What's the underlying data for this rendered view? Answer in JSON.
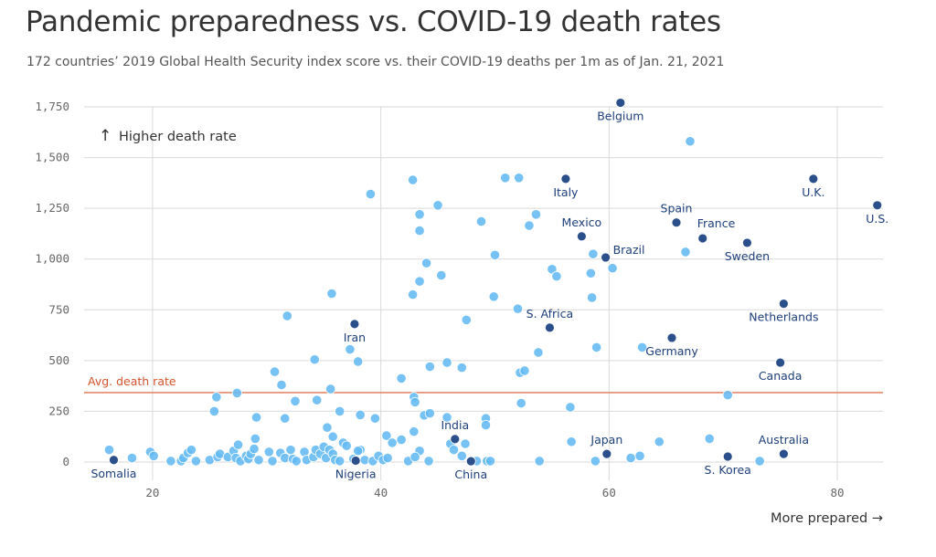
{
  "title": "Pandemic preparedness vs. COVID-19 death rates",
  "subtitle": "172 countries’ 2019 Global Health Security index score vs. their COVID-19 deaths per 1m as of Jan. 21, 2021",
  "colors": {
    "highlight": "#2b4f8a",
    "other": "#63baf2",
    "avg_line": "#e0744f",
    "grid": "#d9d9d9"
  },
  "chart_data": {
    "type": "scatter",
    "xlim": [
      14,
      84
    ],
    "ylim": [
      0,
      1750
    ],
    "xticks": [
      {
        "v": 20,
        "label": "20"
      },
      {
        "v": 40,
        "label": "40"
      },
      {
        "v": 60,
        "label": "60"
      },
      {
        "v": 80,
        "label": "80"
      }
    ],
    "yticks": [
      {
        "v": 0,
        "label": "0"
      },
      {
        "v": 250,
        "label": "250"
      },
      {
        "v": 500,
        "label": "500"
      },
      {
        "v": 750,
        "label": "750"
      },
      {
        "v": 1000,
        "label": "1,000"
      },
      {
        "v": 1250,
        "label": "1,250"
      },
      {
        "v": 1500,
        "label": "1,500"
      },
      {
        "v": 1750,
        "label": "1,750"
      }
    ],
    "grid": true,
    "x_annotation": "More prepared →",
    "y_annotation_arrow": "↑",
    "y_annotation": "Higher death rate",
    "avg_death_rate": 342,
    "avg_label": "Avg. death rate",
    "highlighted": [
      {
        "name": "Belgium",
        "x": 61.0,
        "y": 1770,
        "label_pos": "below"
      },
      {
        "name": "Italy",
        "x": 56.2,
        "y": 1395,
        "label_pos": "below"
      },
      {
        "name": "U.K.",
        "x": 77.9,
        "y": 1395,
        "label_pos": "below"
      },
      {
        "name": "U.S.",
        "x": 83.5,
        "y": 1265,
        "label_pos": "below"
      },
      {
        "name": "Spain",
        "x": 65.9,
        "y": 1180,
        "label_pos": "above"
      },
      {
        "name": "Mexico",
        "x": 57.6,
        "y": 1112,
        "label_pos": "above"
      },
      {
        "name": "France",
        "x": 68.2,
        "y": 1102,
        "label_pos": "above-right"
      },
      {
        "name": "Sweden",
        "x": 72.1,
        "y": 1080,
        "label_pos": "below"
      },
      {
        "name": "Brazil",
        "x": 59.7,
        "y": 1008,
        "label_pos": "right"
      },
      {
        "name": "Netherlands",
        "x": 75.3,
        "y": 780,
        "label_pos": "below"
      },
      {
        "name": "Iran",
        "x": 37.7,
        "y": 680,
        "label_pos": "below"
      },
      {
        "name": "S. Africa",
        "x": 54.8,
        "y": 662,
        "label_pos": "above"
      },
      {
        "name": "Germany",
        "x": 65.5,
        "y": 612,
        "label_pos": "below"
      },
      {
        "name": "Canada",
        "x": 75.0,
        "y": 490,
        "label_pos": "below"
      },
      {
        "name": "India",
        "x": 46.5,
        "y": 113,
        "label_pos": "above"
      },
      {
        "name": "Japan",
        "x": 59.8,
        "y": 40,
        "label_pos": "above"
      },
      {
        "name": "Australia",
        "x": 75.3,
        "y": 40,
        "label_pos": "above"
      },
      {
        "name": "S. Korea",
        "x": 70.4,
        "y": 27,
        "label_pos": "below"
      },
      {
        "name": "Somalia",
        "x": 16.6,
        "y": 10,
        "label_pos": "below"
      },
      {
        "name": "Nigeria",
        "x": 37.8,
        "y": 7,
        "label_pos": "below"
      },
      {
        "name": "China",
        "x": 47.9,
        "y": 4,
        "label_pos": "below"
      }
    ],
    "others": [
      [
        50.9,
        1400
      ],
      [
        52.1,
        1400
      ],
      [
        42.8,
        1390
      ],
      [
        39.1,
        1320
      ],
      [
        45.0,
        1265
      ],
      [
        43.4,
        1220
      ],
      [
        53.6,
        1220
      ],
      [
        48.8,
        1185
      ],
      [
        53.0,
        1165
      ],
      [
        43.4,
        1140
      ],
      [
        44.0,
        980
      ],
      [
        50.0,
        1020
      ],
      [
        58.6,
        1025
      ],
      [
        55.0,
        950
      ],
      [
        60.3,
        955
      ],
      [
        58.4,
        930
      ],
      [
        45.3,
        920
      ],
      [
        55.4,
        915
      ],
      [
        43.4,
        890
      ],
      [
        35.7,
        830
      ],
      [
        42.8,
        825
      ],
      [
        49.9,
        815
      ],
      [
        58.5,
        810
      ],
      [
        31.8,
        720
      ],
      [
        47.5,
        700
      ],
      [
        52.0,
        755
      ],
      [
        67.1,
        1580
      ],
      [
        66.7,
        1035
      ],
      [
        37.3,
        555
      ],
      [
        38.0,
        495
      ],
      [
        34.2,
        505
      ],
      [
        30.7,
        445
      ],
      [
        31.3,
        380
      ],
      [
        53.8,
        540
      ],
      [
        58.9,
        565
      ],
      [
        62.9,
        565
      ],
      [
        45.8,
        490
      ],
      [
        44.3,
        470
      ],
      [
        47.1,
        465
      ],
      [
        52.2,
        440
      ],
      [
        52.6,
        450
      ],
      [
        41.8,
        412
      ],
      [
        35.6,
        360
      ],
      [
        27.4,
        340
      ],
      [
        25.6,
        320
      ],
      [
        42.9,
        320
      ],
      [
        43.0,
        295
      ],
      [
        32.5,
        300
      ],
      [
        34.4,
        305
      ],
      [
        52.3,
        290
      ],
      [
        56.6,
        270
      ],
      [
        25.4,
        250
      ],
      [
        36.4,
        250
      ],
      [
        38.2,
        232
      ],
      [
        39.5,
        215
      ],
      [
        43.8,
        230
      ],
      [
        44.3,
        240
      ],
      [
        45.8,
        220
      ],
      [
        49.2,
        215
      ],
      [
        49.2,
        182
      ],
      [
        29.1,
        220
      ],
      [
        31.6,
        215
      ],
      [
        35.3,
        170
      ],
      [
        35.8,
        125
      ],
      [
        36.7,
        95
      ],
      [
        38.2,
        60
      ],
      [
        41.8,
        110
      ],
      [
        42.9,
        150
      ],
      [
        43.4,
        55
      ],
      [
        46.1,
        90
      ],
      [
        47.4,
        90
      ],
      [
        68.8,
        115
      ],
      [
        64.4,
        100
      ],
      [
        56.7,
        100
      ],
      [
        62.7,
        30
      ],
      [
        16.2,
        60
      ],
      [
        18.2,
        20
      ],
      [
        19.8,
        50
      ],
      [
        20.1,
        30
      ],
      [
        21.6,
        5
      ],
      [
        22.5,
        5
      ],
      [
        22.7,
        20
      ],
      [
        23.1,
        45
      ],
      [
        23.4,
        60
      ],
      [
        23.8,
        5
      ],
      [
        25.0,
        10
      ],
      [
        25.7,
        25
      ],
      [
        25.9,
        40
      ],
      [
        26.6,
        25
      ],
      [
        27.1,
        55
      ],
      [
        27.3,
        20
      ],
      [
        27.5,
        85
      ],
      [
        27.7,
        5
      ],
      [
        28.2,
        30
      ],
      [
        28.4,
        15
      ],
      [
        28.6,
        40
      ],
      [
        28.9,
        65
      ],
      [
        29.0,
        115
      ],
      [
        29.3,
        10
      ],
      [
        30.2,
        50
      ],
      [
        30.5,
        5
      ],
      [
        31.2,
        45
      ],
      [
        31.6,
        20
      ],
      [
        32.1,
        60
      ],
      [
        32.3,
        15
      ],
      [
        32.6,
        5
      ],
      [
        33.3,
        50
      ],
      [
        33.5,
        10
      ],
      [
        34.1,
        25
      ],
      [
        34.3,
        60
      ],
      [
        34.7,
        40
      ],
      [
        35.0,
        75
      ],
      [
        35.2,
        20
      ],
      [
        35.5,
        60
      ],
      [
        35.8,
        40
      ],
      [
        36.0,
        10
      ],
      [
        36.4,
        5
      ],
      [
        37.0,
        80
      ],
      [
        37.6,
        15
      ],
      [
        38.0,
        55
      ],
      [
        38.6,
        10
      ],
      [
        39.3,
        5
      ],
      [
        39.8,
        30
      ],
      [
        40.2,
        10
      ],
      [
        40.6,
        20
      ],
      [
        40.5,
        130
      ],
      [
        41.0,
        95
      ],
      [
        42.4,
        5
      ],
      [
        43.0,
        25
      ],
      [
        44.2,
        5
      ],
      [
        46.4,
        60
      ],
      [
        47.1,
        30
      ],
      [
        48.4,
        5
      ],
      [
        49.3,
        5
      ],
      [
        49.6,
        5
      ],
      [
        53.9,
        5
      ],
      [
        58.8,
        5
      ],
      [
        61.9,
        20
      ],
      [
        73.2,
        5
      ],
      [
        70.4,
        330
      ]
    ]
  }
}
